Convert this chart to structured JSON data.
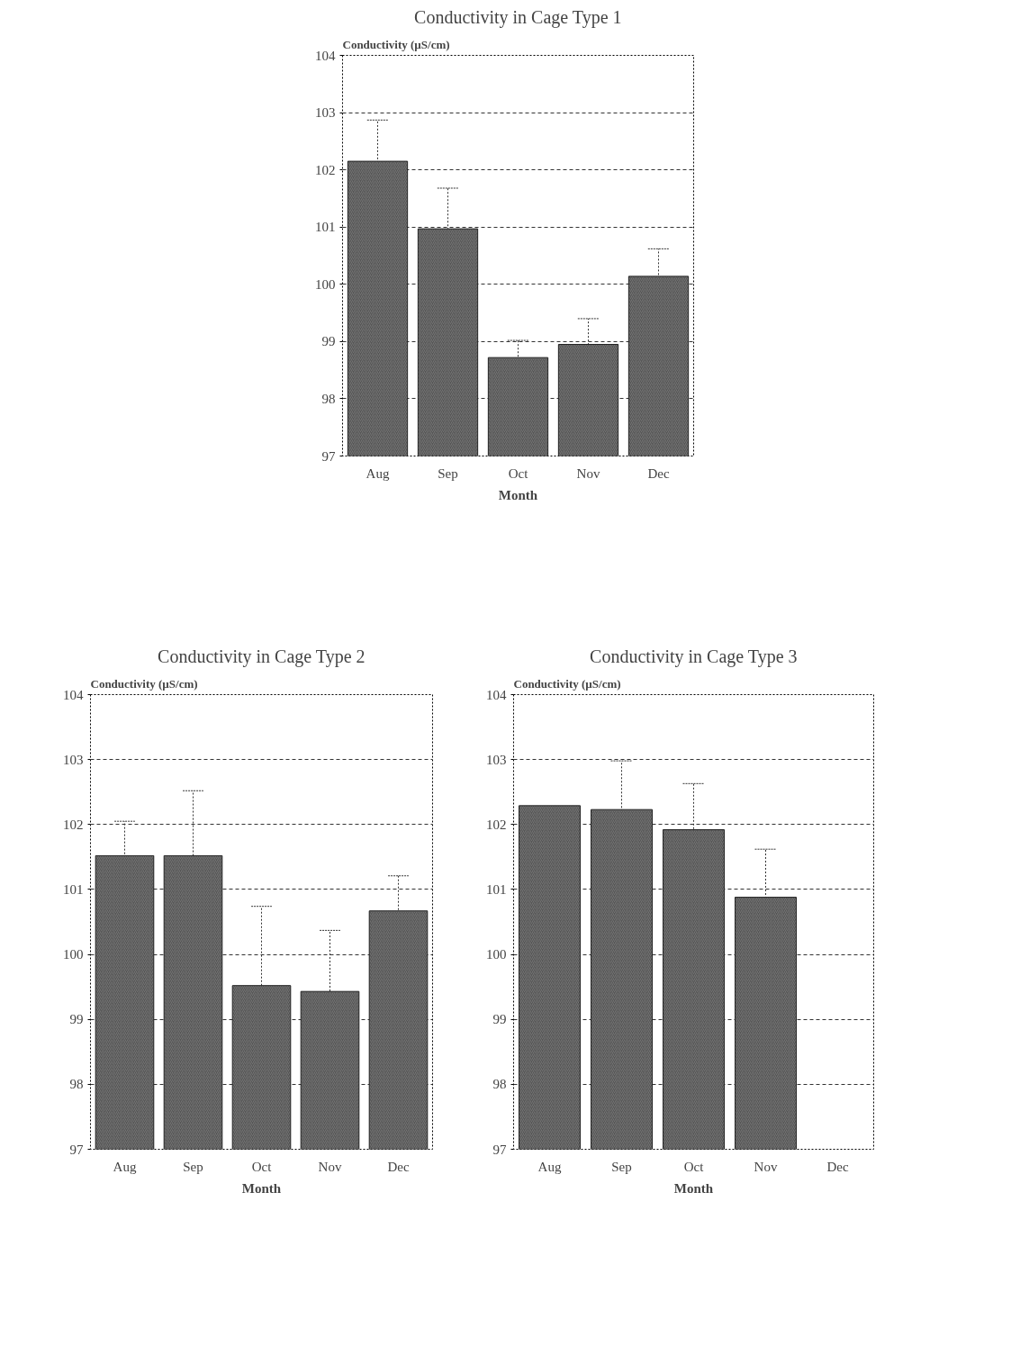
{
  "chart_data": [
    {
      "type": "bar",
      "title": "Conductivity in Cage Type 1",
      "xlabel": "Month",
      "ylabel": "Conductivity (µS/cm)",
      "categories": [
        "Aug",
        "Sep",
        "Oct",
        "Nov",
        "Dec"
      ],
      "values": [
        102.15,
        100.97,
        98.72,
        98.95,
        100.14
      ],
      "errors": [
        0.72,
        0.71,
        0.3,
        0.45,
        0.48
      ],
      "color": "#555555",
      "ylim": [
        97,
        104
      ],
      "yticks": [
        97,
        98,
        99,
        100,
        101,
        102,
        103,
        104
      ],
      "grid": "y"
    },
    {
      "type": "bar",
      "title": "Conductivity in Cage Type 2",
      "xlabel": "Month",
      "ylabel": "Conductivity (µS/cm)",
      "categories": [
        "Aug",
        "Sep",
        "Oct",
        "Nov",
        "Dec"
      ],
      "values": [
        101.52,
        101.52,
        99.52,
        99.43,
        100.67
      ],
      "errors": [
        0.53,
        1.0,
        1.22,
        0.94,
        0.54
      ],
      "color": "#555555",
      "ylim": [
        97,
        104
      ],
      "yticks": [
        97,
        98,
        99,
        100,
        101,
        102,
        103,
        104
      ],
      "grid": "y"
    },
    {
      "type": "bar",
      "title": "Conductivity in Cage Type 3",
      "xlabel": "Month",
      "ylabel": "Conductivity (µS/cm)",
      "categories": [
        "Aug",
        "Sep",
        "Oct",
        "Nov",
        "Dec"
      ],
      "values": [
        102.29,
        102.23,
        101.92,
        100.88,
        null
      ],
      "errors": [
        null,
        0.75,
        0.71,
        0.74,
        null
      ],
      "color": "#555555",
      "ylim": [
        97,
        104
      ],
      "yticks": [
        97,
        98,
        99,
        100,
        101,
        102,
        103,
        104
      ],
      "grid": "y"
    }
  ]
}
